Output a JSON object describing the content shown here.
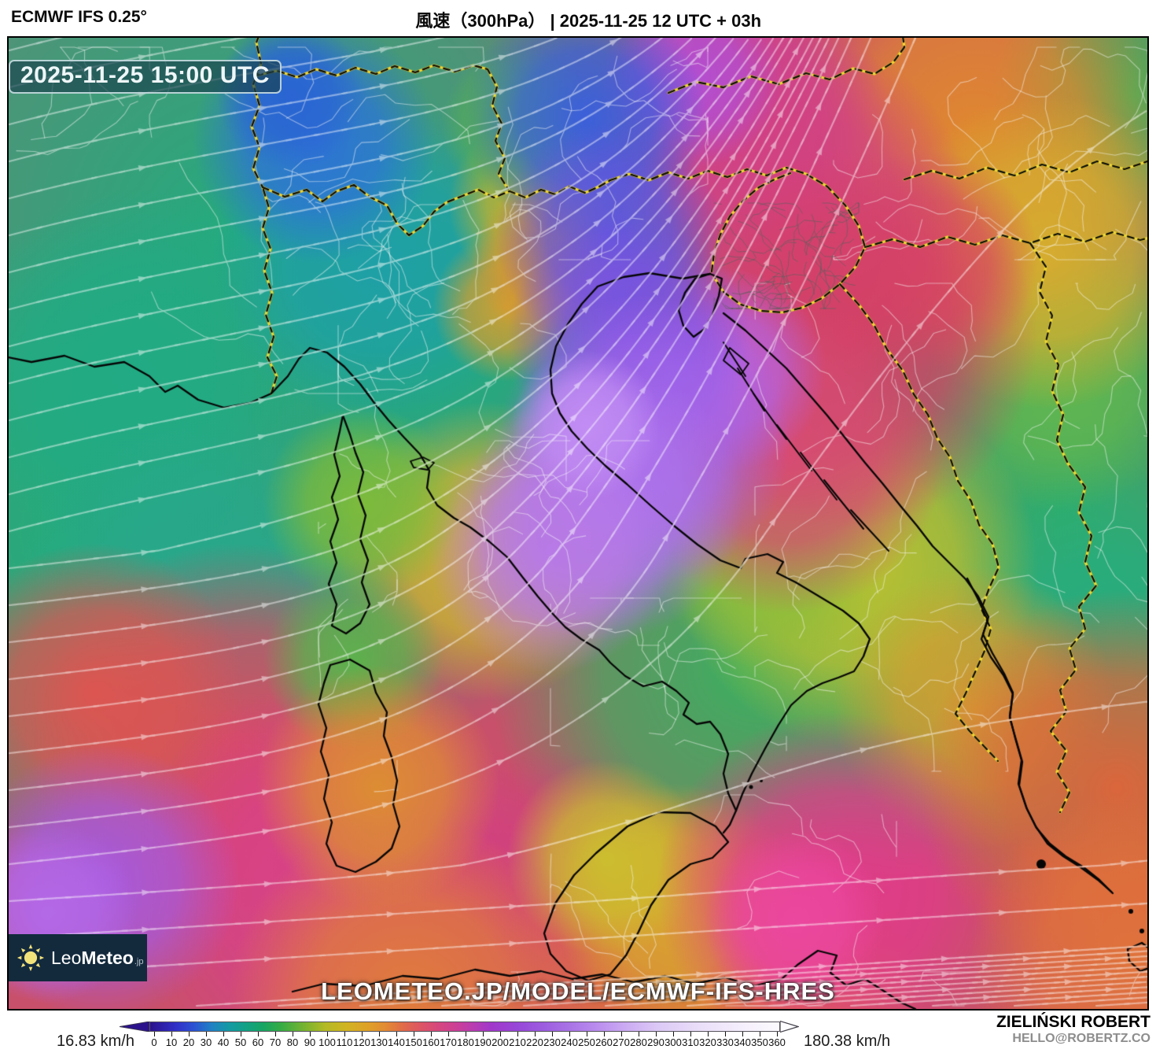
{
  "header": {
    "model_label": "ECMWF IFS 0.25°",
    "title": "風速（300hPa） | 2025-11-25 12 UTC + 03h"
  },
  "map": {
    "timestamp_badge": "2025-11-25 15:00 UTC",
    "watermark": "LEOMETEO.JP/MODEL/ECMWF-IFS-HRES",
    "logo": {
      "name_light": "Leo",
      "name_bold": "Meteo",
      "tld": ".jp",
      "sun_color": "#f2e27a"
    }
  },
  "legend": {
    "min_label": "16.83 km/h",
    "max_label": "180.38 km/h",
    "unit": "km/h",
    "ticks": [
      0,
      10,
      20,
      30,
      40,
      50,
      60,
      70,
      80,
      90,
      100,
      110,
      120,
      130,
      140,
      150,
      160,
      170,
      180,
      190,
      200,
      210,
      220,
      230,
      240,
      250,
      260,
      270,
      280,
      290,
      300,
      310,
      320,
      330,
      340,
      350,
      360
    ],
    "colorbar_stops": [
      {
        "v": 0,
        "c": "#2b128c"
      },
      {
        "v": 15,
        "c": "#3130c8"
      },
      {
        "v": 25,
        "c": "#2b52d2"
      },
      {
        "v": 35,
        "c": "#2080c4"
      },
      {
        "v": 45,
        "c": "#149aa4"
      },
      {
        "v": 55,
        "c": "#12a184"
      },
      {
        "v": 65,
        "c": "#18a562"
      },
      {
        "v": 75,
        "c": "#36ac44"
      },
      {
        "v": 90,
        "c": "#80b42e"
      },
      {
        "v": 100,
        "c": "#b2ba24"
      },
      {
        "v": 112,
        "c": "#d0b422"
      },
      {
        "v": 125,
        "c": "#dfa028"
      },
      {
        "v": 135,
        "c": "#e28a34"
      },
      {
        "v": 145,
        "c": "#e06a4a"
      },
      {
        "v": 155,
        "c": "#dd5564"
      },
      {
        "v": 165,
        "c": "#d6477e"
      },
      {
        "v": 175,
        "c": "#cc4096"
      },
      {
        "v": 185,
        "c": "#b83cb2"
      },
      {
        "v": 195,
        "c": "#a138ca"
      },
      {
        "v": 210,
        "c": "#9747d8"
      },
      {
        "v": 225,
        "c": "#9d5ce0"
      },
      {
        "v": 240,
        "c": "#a973e6"
      },
      {
        "v": 255,
        "c": "#b98bee"
      },
      {
        "v": 270,
        "c": "#c9a7f2"
      },
      {
        "v": 290,
        "c": "#dcc8f6"
      },
      {
        "v": 315,
        "c": "#eadff9"
      },
      {
        "v": 340,
        "c": "#f5effc"
      },
      {
        "v": 360,
        "c": "#fcfafe"
      }
    ]
  },
  "credit": {
    "author": "ZIELIŃSKI ROBERT",
    "contact": "HELLO@ROBERTZ.CO"
  }
}
